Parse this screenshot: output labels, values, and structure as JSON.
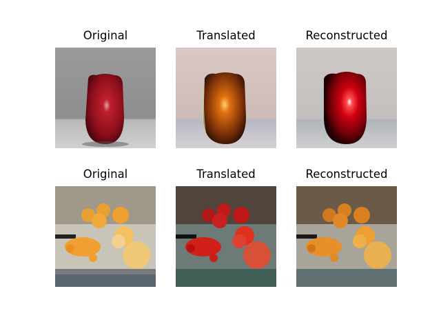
{
  "figure": {
    "rows": [
      {
        "panels": [
          {
            "title": "Original",
            "palette": "apple-original"
          },
          {
            "title": "Translated",
            "palette": "apple-translated"
          },
          {
            "title": "Reconstructed",
            "palette": "apple-reconstructed"
          }
        ]
      },
      {
        "panels": [
          {
            "title": "Original",
            "palette": "oranges-original"
          },
          {
            "title": "Translated",
            "palette": "oranges-translated"
          },
          {
            "title": "Reconstructed",
            "palette": "oranges-reconstructed"
          }
        ]
      }
    ]
  }
}
